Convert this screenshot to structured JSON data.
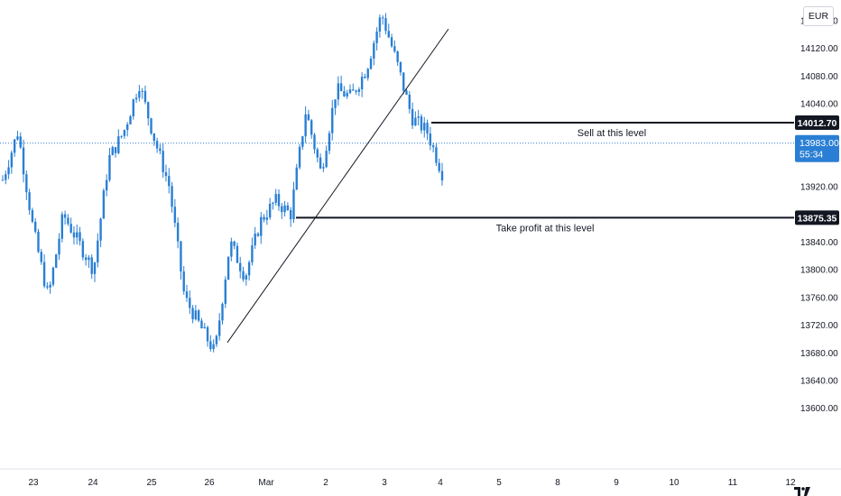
{
  "chart_data": {
    "type": "candlestick",
    "currency": "EUR",
    "y_ticks": [
      {
        "value": 14120,
        "label": "14120.00"
      },
      {
        "value": 14080,
        "label": "14080.00"
      },
      {
        "value": 14040,
        "label": "14040.00"
      },
      {
        "value": 13920,
        "label": "13920.00"
      },
      {
        "value": 13840,
        "label": "13840.00"
      },
      {
        "value": 13800,
        "label": "13800.00"
      },
      {
        "value": 13760,
        "label": "13760.00"
      },
      {
        "value": 13720,
        "label": "13720.00"
      },
      {
        "value": 13680,
        "label": "13680.00"
      },
      {
        "value": 13640,
        "label": "13640.00"
      },
      {
        "value": 13600,
        "label": "13600.00"
      }
    ],
    "y_top_partial": {
      "value": 14160,
      "label": "14160.00"
    },
    "x_ticks": [
      "23",
      "24",
      "25",
      "26",
      "Mar",
      "2",
      "3",
      "4",
      "5",
      "8",
      "9",
      "10",
      "11",
      "12"
    ],
    "ylim": [
      13560,
      14175
    ],
    "grid": false,
    "series_color": "#2962ff",
    "price_path": [
      {
        "x": "23",
        "y": 13930
      },
      {
        "x": "23",
        "y": 14000
      },
      {
        "x": "23",
        "y": 13860
      },
      {
        "x": "23",
        "y": 13760
      },
      {
        "x": "24",
        "y": 13880
      },
      {
        "x": "24",
        "y": 13840
      },
      {
        "x": "24",
        "y": 13800
      },
      {
        "x": "24",
        "y": 13960
      },
      {
        "x": "25",
        "y": 14000
      },
      {
        "x": "25",
        "y": 14070
      },
      {
        "x": "25",
        "y": 13990
      },
      {
        "x": "26",
        "y": 13920
      },
      {
        "x": "26",
        "y": 13760
      },
      {
        "x": "26",
        "y": 13720
      },
      {
        "x": "26",
        "y": 13680
      },
      {
        "x": "26",
        "y": 13840
      },
      {
        "x": "26",
        "y": 13790
      },
      {
        "x": "Mar",
        "y": 13870
      },
      {
        "x": "Mar",
        "y": 13900
      },
      {
        "x": "Mar",
        "y": 13880
      },
      {
        "x": "2",
        "y": 14030
      },
      {
        "x": "2",
        "y": 13940
      },
      {
        "x": "2",
        "y": 14060
      },
      {
        "x": "3",
        "y": 14050
      },
      {
        "x": "3",
        "y": 14090
      },
      {
        "x": "3",
        "y": 14170
      },
      {
        "x": "3",
        "y": 14100
      },
      {
        "x": "3",
        "y": 14020
      },
      {
        "x": "4",
        "y": 14000
      },
      {
        "x": "4",
        "y": 13940
      }
    ],
    "trendline": {
      "from": {
        "x": "26",
        "y": 13695
      },
      "to": {
        "x": "3",
        "y": 14148
      }
    },
    "levels": [
      {
        "name": "sell",
        "value": 14012.7,
        "label": "14012.70",
        "text": "Sell at this level",
        "from_x": "3"
      },
      {
        "name": "take-profit",
        "value": 13875.35,
        "label": "13875.35",
        "text": "Take profit at this level",
        "from_x": "Mar"
      }
    ],
    "current_price": {
      "value": 13983.0,
      "label": "13983.00",
      "countdown": "55:34"
    }
  }
}
